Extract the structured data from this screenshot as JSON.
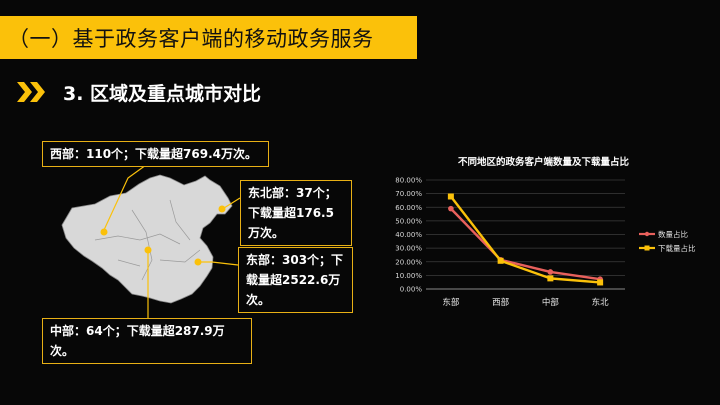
{
  "header": {
    "title": "（一）基于政务客户端的移动政务服务"
  },
  "section": {
    "heading": "3. 区域及重点城市对比",
    "bullet_icon": "double-chevron-icon"
  },
  "colors": {
    "accent": "#fbc10a",
    "series_count": "#e8605c",
    "series_download": "#fbc10a"
  },
  "map": {
    "icon": "china-map",
    "callouts": {
      "west": "西部：110个；下载量超769.4万次。",
      "northeast": "东北部：37个；下载量超176.5万次。",
      "east": "东部：303个；下载量超2522.6万次。",
      "central": "中部：64个；下载量超287.9万次。"
    }
  },
  "chart_data": {
    "type": "line",
    "title": "不同地区的政务客户端数量及下载量占比",
    "categories": [
      "东部",
      "西部",
      "中部",
      "东北"
    ],
    "series": [
      {
        "name": "数量占比",
        "values": [
          59.0,
          21.4,
          12.5,
          7.2
        ],
        "color": "#e8605c"
      },
      {
        "name": "下载量占比",
        "values": [
          67.9,
          20.7,
          7.8,
          4.8
        ],
        "color": "#fbc10a"
      }
    ],
    "ylim": [
      0,
      80
    ],
    "yticks": [
      "0.00%",
      "10.00%",
      "20.00%",
      "30.00%",
      "40.00%",
      "50.00%",
      "60.00%",
      "70.00%",
      "80.00%"
    ],
    "grid": true,
    "legend": "right"
  }
}
